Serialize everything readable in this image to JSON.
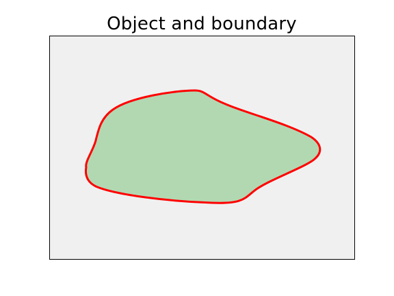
{
  "figure": {
    "title": "Object and boundary"
  },
  "colors": {
    "axes_background": "#f0f0f0",
    "axes_border": "#000000",
    "object_fill": "#b2d8b2",
    "boundary_stroke": "#ff0000"
  },
  "layers": {
    "object": "object-region",
    "boundary": "boundary-curve"
  }
}
